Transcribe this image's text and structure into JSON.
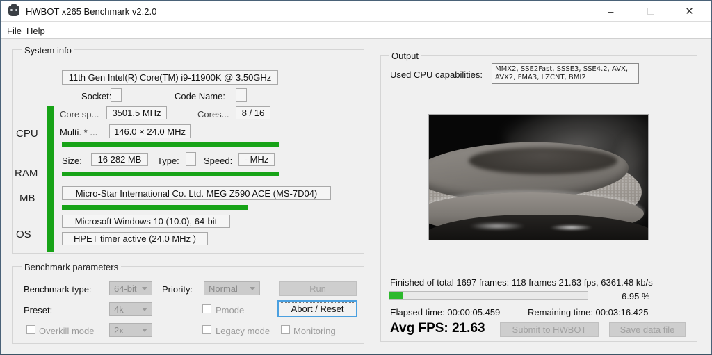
{
  "window": {
    "title": "HWBOT x265 Benchmark v2.2.0",
    "minimize": "–",
    "close": "✕"
  },
  "menu": {
    "file": "File",
    "help": "Help"
  },
  "system_info": {
    "title": "System info",
    "cpu_name": "11th Gen Intel(R) Core(TM) i9-11900K @ 3.50GHz",
    "socket_label": "Socket:",
    "code_name_label": "Code Name:",
    "core_speed_label": "Core sp...",
    "core_speed": "3501.5 MHz",
    "cores_label": "Cores...",
    "cores": "8 / 16",
    "cpu_label": "CPU",
    "multiplier_label": "Multi. * ...",
    "multiplier": "146.0 × 24.0 MHz",
    "ram_label": "RAM",
    "size_label": "Size:",
    "size": "16 282 MB",
    "type_label": "Type:",
    "speed_label": "Speed:",
    "speed": "- MHz",
    "mb_label": "MB",
    "motherboard": "Micro-Star International Co. Ltd. MEG Z590 ACE (MS-7D04)",
    "os_label": "OS",
    "os": "Microsoft Windows 10 (10.0), 64-bit",
    "hpet": "HPET timer active (24.0 MHz )"
  },
  "benchmark_parameters": {
    "title": "Benchmark parameters",
    "benchmark_type_label": "Benchmark type:",
    "benchmark_type": "64-bit",
    "priority_label": "Priority:",
    "priority": "Normal",
    "run_label": "Run",
    "preset_label": "Preset:",
    "preset": "4k",
    "pmode_label": "Pmode",
    "abort_label": "Abort / Reset",
    "overkill_label": "Overkill mode",
    "overkill_value": "2x",
    "legacy_label": "Legacy mode",
    "monitoring_label": "Monitoring"
  },
  "output": {
    "title": "Output",
    "capabilities_label": "Used CPU capabilities:",
    "capabilities": "MMX2, SSE2Fast, SSSE3, SSE4.2, AVX, AVX2, FMA3, LZCNT, BMI2",
    "finished": "Finished of total 1697 frames: 118 frames 21.63 fps, 6361.48 kb/s",
    "progress_percent_label": "6.95 %",
    "progress_value": 6.95,
    "elapsed": "Elapsed time: 00:00:05.459",
    "remaining": "Remaining time: 00:03:16.425",
    "avg_fps": "Avg FPS: 21.63",
    "submit_label": "Submit to HWBOT",
    "save_label": "Save data file"
  },
  "colors": {
    "system_bar_green": "#17a317",
    "progress_green": "#2db92d",
    "focus_border_blue": "#4aa0e0",
    "window_border": "#4a6278"
  }
}
